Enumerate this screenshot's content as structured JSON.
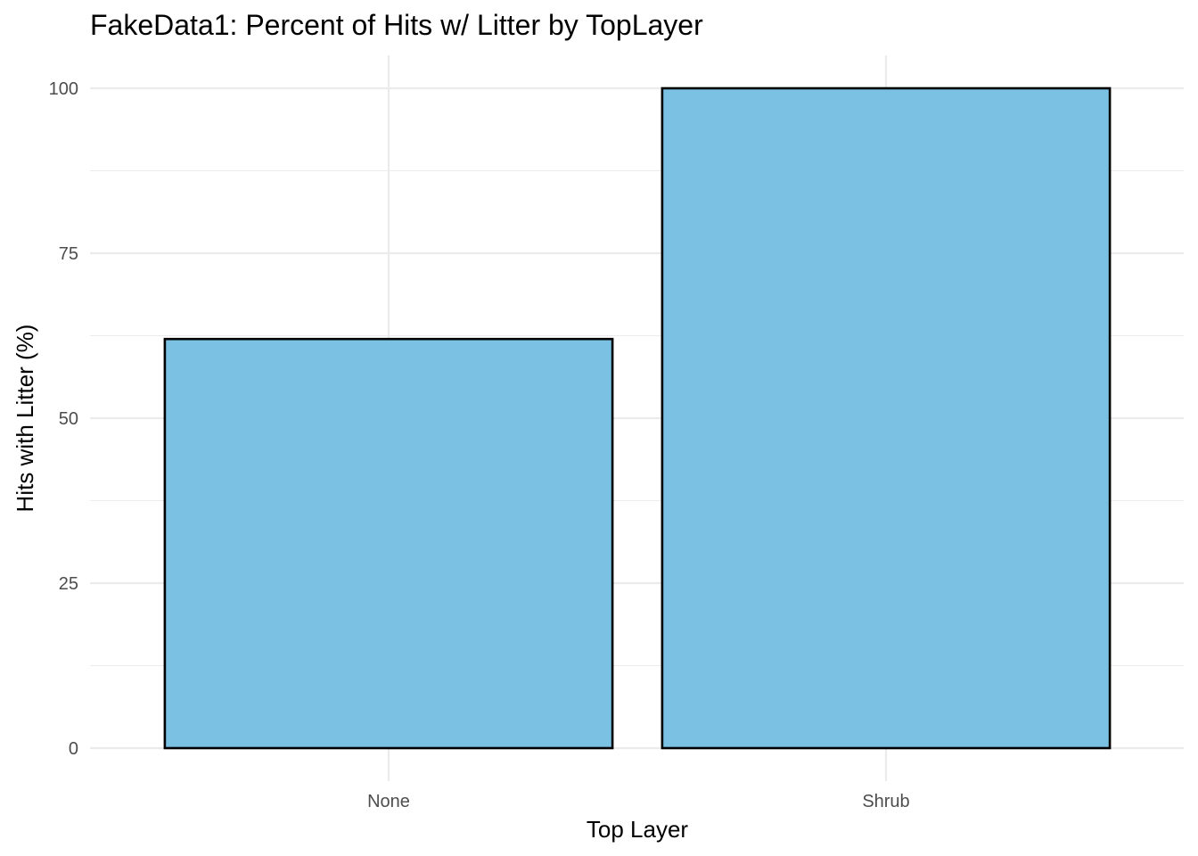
{
  "chart_data": {
    "type": "bar",
    "title": "FakeData1: Percent of Hits w/ Litter by TopLayer",
    "xlabel": "Top Layer",
    "ylabel": "Hits with Litter (%)",
    "categories": [
      "None",
      "Shrub"
    ],
    "values": [
      62,
      100
    ],
    "ylim": [
      0,
      100
    ],
    "yticks": [
      "0",
      "25",
      "50",
      "75",
      "100"
    ],
    "ytick_values": [
      0,
      25,
      50,
      75,
      100
    ],
    "grid": true,
    "legend": "none",
    "colors": {
      "bar_fill": "#7AC1E4",
      "bar_outline": "#000000",
      "grid": "#EBEBEB",
      "tick_text": "#4D4D4D",
      "text": "#000000"
    }
  }
}
